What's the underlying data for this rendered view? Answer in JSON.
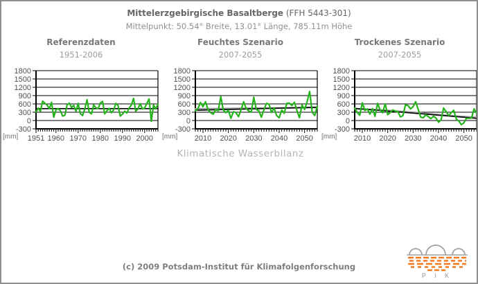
{
  "header": {
    "title_bold": "Mittelerzgebirgische Basaltberge",
    "title_rest": "(FFH 5443-301)",
    "subtitle": "Mittelpunkt: 50.54° Breite, 13.01° Länge, 785.11m Höhe"
  },
  "caption": "Klimatische Wasserbilanz",
  "footer": {
    "copyright": "(c) 2009 Potsdam-Institut für Klimafolgenforschung"
  },
  "logo": {
    "text": "P I K",
    "orange": "#f5791e",
    "gray": "#a2a2a2"
  },
  "colors": {
    "green": "#25b31c",
    "black": "#000000",
    "gray_trend": "#9b9b9b"
  },
  "chart_data": [
    {
      "type": "line",
      "title": "Referenzdaten",
      "subtitle": "1951-2006",
      "xlabel": "",
      "ylabel": "[mm]",
      "y_unit": "[mm]",
      "x_start": 1951,
      "x_end": 2006,
      "x_tick_labels": [
        1951,
        1960,
        1970,
        1980,
        1990,
        2000
      ],
      "ylim": [
        -300,
        1800
      ],
      "y_ticks": [
        1800,
        1500,
        1200,
        900,
        600,
        300,
        0,
        -300
      ],
      "grid": true,
      "legend": "none",
      "series": [
        {
          "name": "linear-trend",
          "color": "#000000",
          "width": 1.6,
          "x": [
            1951,
            2006
          ],
          "values": [
            430,
            430
          ]
        },
        {
          "name": "annual-values",
          "color": "#25b31c",
          "width": 2.2,
          "values": [
            310,
            450,
            330,
            700,
            620,
            560,
            430,
            660,
            120,
            390,
            430,
            350,
            160,
            190,
            560,
            630,
            470,
            550,
            330,
            620,
            250,
            180,
            420,
            750,
            300,
            240,
            560,
            460,
            430,
            630,
            690,
            240,
            360,
            440,
            280,
            380,
            620,
            540,
            160,
            230,
            340,
            270,
            450,
            560,
            800,
            340,
            420,
            610,
            420,
            450,
            620,
            780,
            -30,
            560,
            420,
            590
          ]
        }
      ]
    },
    {
      "type": "line",
      "title": "Feuchtes Szenario",
      "subtitle": "2007-2055",
      "xlabel": "",
      "ylabel": "[mm]",
      "y_unit": "[mm]",
      "x_start": 2007,
      "x_end": 2055,
      "x_tick_labels": [
        2010,
        2020,
        2030,
        2040,
        2050
      ],
      "ylim": [
        -300,
        1800
      ],
      "y_ticks": [
        1800,
        1500,
        1200,
        900,
        600,
        300,
        0,
        -300
      ],
      "grid": true,
      "legend": "none",
      "series": [
        {
          "name": "smoothed-trend",
          "color": "#9b9b9b",
          "width": 2.4,
          "x": [
            2007,
            2019,
            2031,
            2043,
            2055
          ],
          "values": [
            420,
            432,
            448,
            455,
            468
          ]
        },
        {
          "name": "linear-trend",
          "color": "#000000",
          "width": 1.6,
          "x": [
            2007,
            2055
          ],
          "values": [
            370,
            480
          ]
        },
        {
          "name": "annual-values",
          "color": "#25b31c",
          "width": 2.2,
          "values": [
            350,
            420,
            650,
            500,
            680,
            390,
            280,
            230,
            390,
            350,
            860,
            380,
            280,
            370,
            80,
            320,
            280,
            140,
            390,
            680,
            430,
            350,
            300,
            840,
            400,
            350,
            120,
            390,
            620,
            590,
            290,
            450,
            180,
            100,
            380,
            260,
            620,
            630,
            540,
            660,
            350,
            100,
            560,
            400,
            680,
            1050,
            300,
            180,
            520
          ]
        }
      ]
    },
    {
      "type": "line",
      "title": "Trockenes Szenario",
      "subtitle": "2007-2055",
      "xlabel": "",
      "ylabel": "[mm]",
      "y_unit": "[mm]",
      "x_start": 2007,
      "x_end": 2055,
      "x_tick_labels": [
        2010,
        2020,
        2030,
        2040,
        2050
      ],
      "ylim": [
        -300,
        1800
      ],
      "y_ticks": [
        1800,
        1500,
        1200,
        900,
        600,
        300,
        0,
        -300
      ],
      "grid": true,
      "legend": "none",
      "series": [
        {
          "name": "smoothed-trend",
          "color": "#9b9b9b",
          "width": 2.4,
          "x": [
            2007,
            2019,
            2031,
            2043,
            2055
          ],
          "values": [
            425,
            370,
            290,
            185,
            110
          ]
        },
        {
          "name": "linear-trend",
          "color": "#000000",
          "width": 1.6,
          "x": [
            2007,
            2055
          ],
          "values": [
            440,
            80
          ]
        },
        {
          "name": "annual-values",
          "color": "#25b31c",
          "width": 2.2,
          "values": [
            450,
            290,
            190,
            640,
            360,
            420,
            230,
            430,
            150,
            620,
            380,
            280,
            600,
            210,
            290,
            380,
            340,
            320,
            130,
            180,
            570,
            540,
            420,
            500,
            680,
            400,
            120,
            100,
            210,
            140,
            70,
            150,
            90,
            -60,
            20,
            450,
            320,
            180,
            280,
            370,
            50,
            -20,
            -150,
            -80,
            80,
            80,
            90,
            420,
            260
          ]
        }
      ]
    }
  ]
}
